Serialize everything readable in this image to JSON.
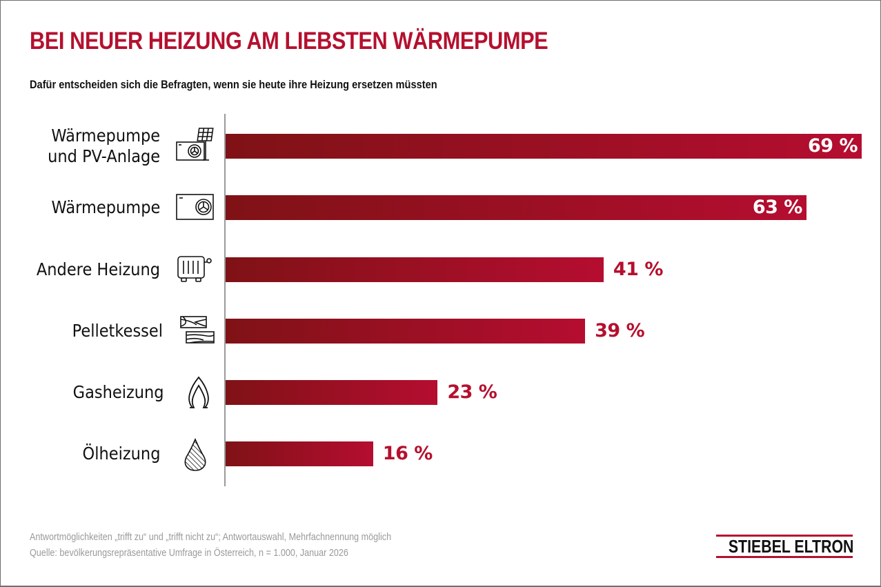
{
  "header": {
    "title": "BEI NEUER HEIZUNG AM LIEBSTEN WÄRMEPUMPE",
    "subtitle": "Dafür entscheiden sich die Befragten, wenn sie heute ihre Heizung ersetzen müssten"
  },
  "chart_data": {
    "type": "bar",
    "orientation": "horizontal",
    "title": "BEI NEUER HEIZUNG AM LIEBSTEN WÄRMEPUMPE",
    "subtitle": "Dafür entscheiden sich die Befragten, wenn sie heute ihre Heizung ersetzen müssten",
    "xlabel": "",
    "ylabel": "",
    "unit": "%",
    "xlim": [
      0,
      69
    ],
    "grid": false,
    "legend": "none",
    "categories": [
      "Wärmepumpe und PV-Anlage",
      "Wärmepumpe",
      "Andere Heizung",
      "Pelletkessel",
      "Gasheizung",
      "Ölheizung"
    ],
    "category_lines": [
      [
        "Wärmepumpe",
        "und PV-Anlage"
      ],
      [
        "Wärmepumpe"
      ],
      [
        "Andere Heizung"
      ],
      [
        "Pelletkessel"
      ],
      [
        "Gasheizung"
      ],
      [
        "Ölheizung"
      ]
    ],
    "icons": [
      "heat-pump-solar-panel-icon",
      "heat-pump-icon",
      "radiator-icon",
      "wood-logs-icon",
      "gas-flame-icon",
      "oil-drop-icon"
    ],
    "values": [
      69,
      63,
      41,
      39,
      23,
      16
    ],
    "data_labels": [
      "69 %",
      "63 %",
      "41 %",
      "39 %",
      "23 %",
      "16 %"
    ],
    "colors": {
      "bar_start": "#7f1216",
      "bar_end": "#b50d30",
      "label_outside": "#b5102f",
      "label_inside": "#ffffff"
    }
  },
  "footer": {
    "note": "Antwortmöglichkeiten „trifft zu“ und „trifft nicht zu“; Antwortauswahl, Mehrfachnennung möglich",
    "source": "Quelle: bevölkerungsrepräsentative Umfrage in Österreich, n = 1.000, Januar 2026",
    "logo": "STIEBEL ELTRON"
  },
  "colors": {
    "accent": "#b5102f",
    "text": "#111111",
    "muted": "#9a9a9a"
  }
}
